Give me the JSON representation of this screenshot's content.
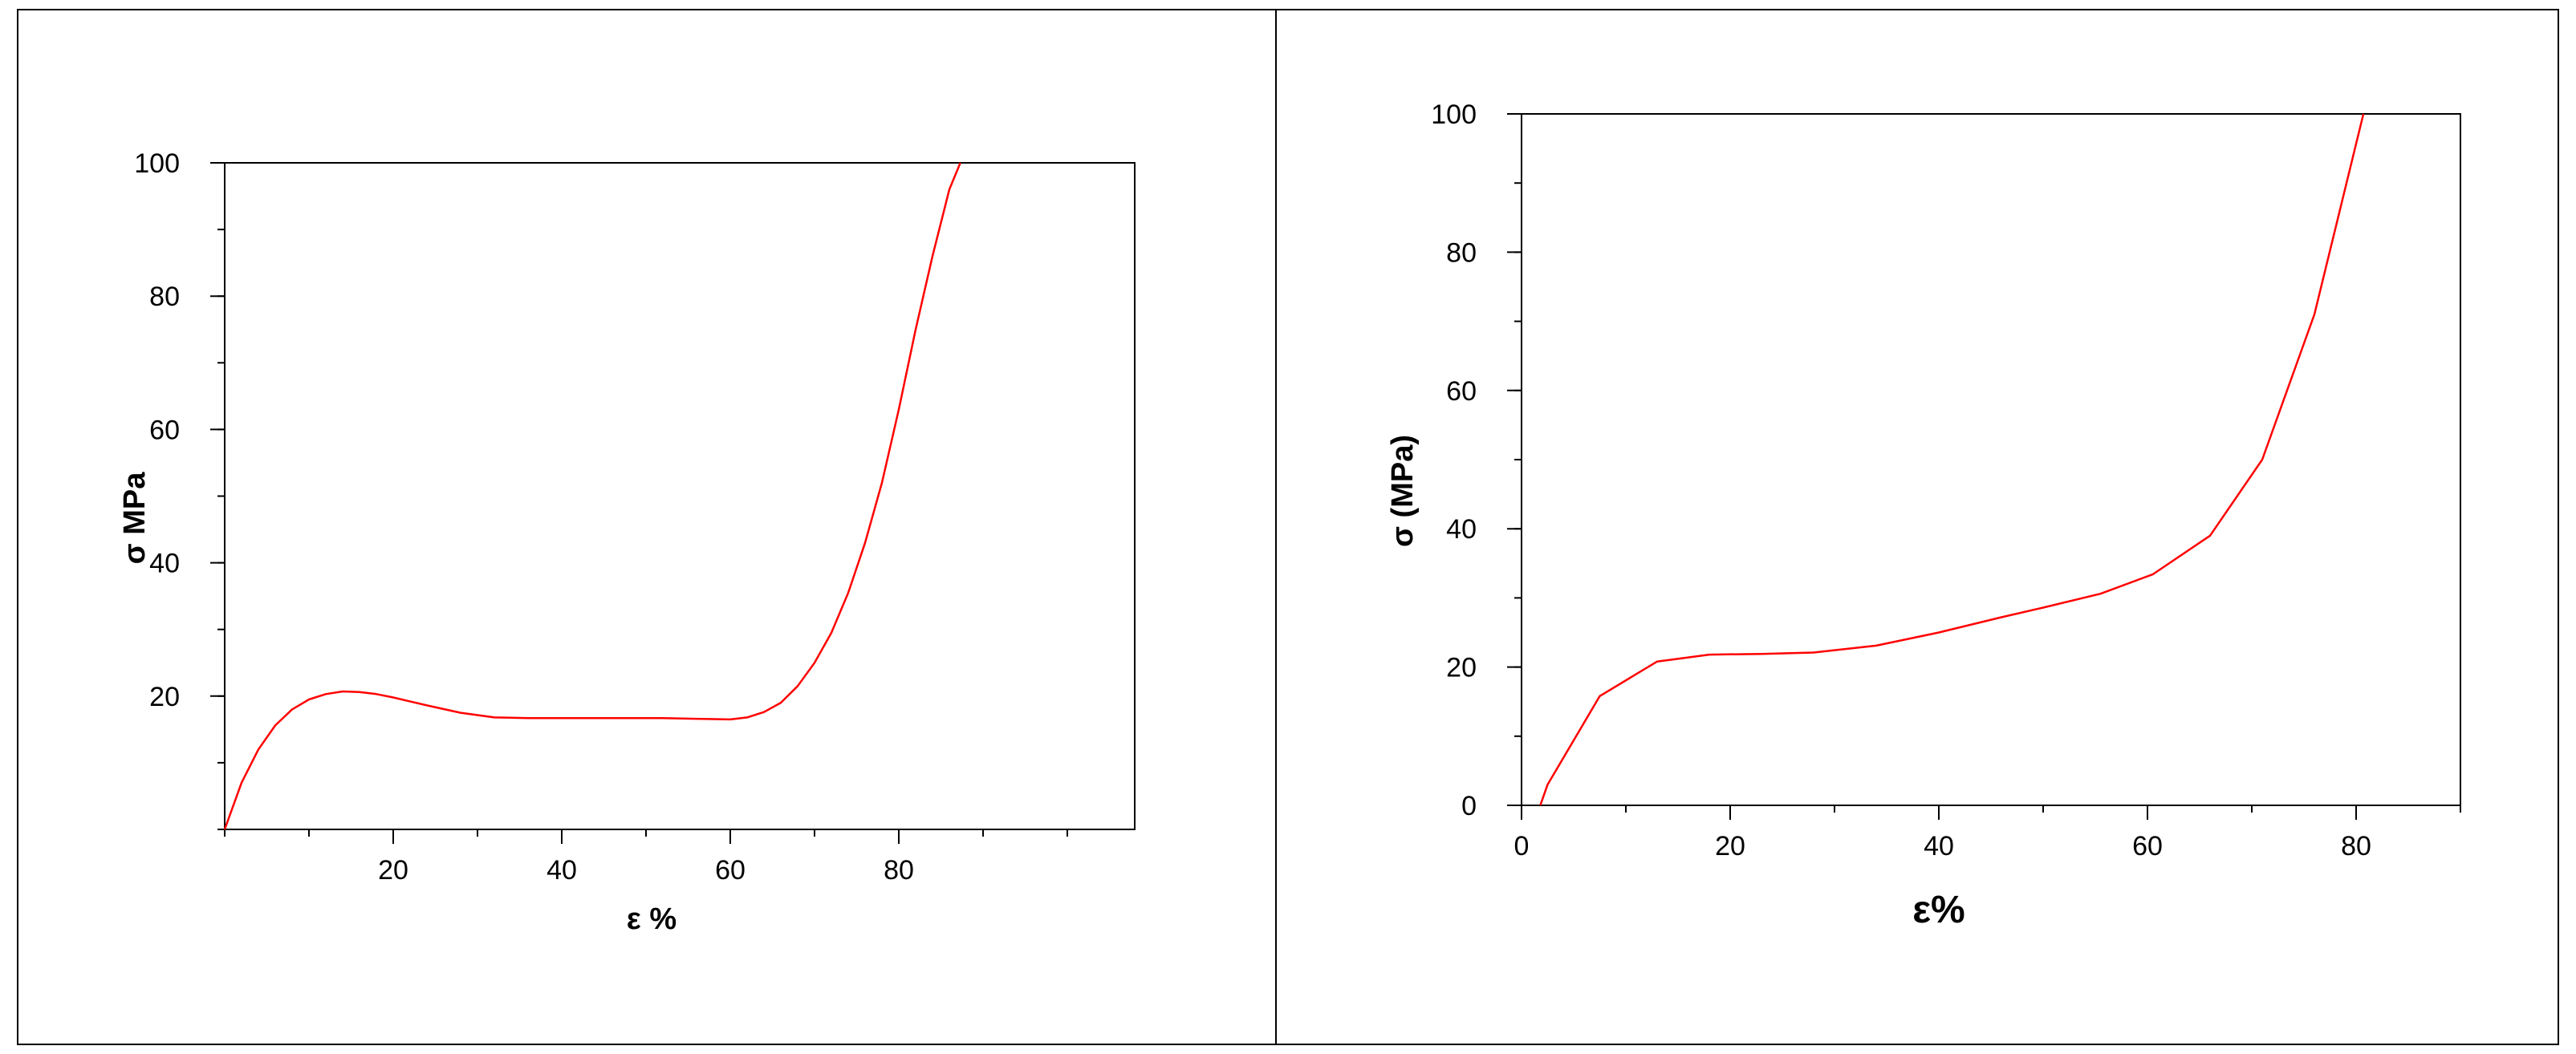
{
  "chart_data": [
    {
      "type": "line",
      "title": "",
      "xlabel": "ε %",
      "ylabel": "σ MPa",
      "xlim": [
        0,
        108
      ],
      "ylim": [
        0,
        100
      ],
      "x_ticks": [
        20,
        40,
        60,
        80
      ],
      "y_ticks": [
        20,
        40,
        60,
        80,
        100
      ],
      "grid": false,
      "series": [
        {
          "color": "#ff0000",
          "x": [
            0,
            2,
            4,
            6,
            8,
            10,
            12,
            14,
            16,
            18,
            20,
            24,
            28,
            32,
            36,
            40,
            44,
            48,
            52,
            56,
            60,
            62,
            64,
            66,
            68,
            70,
            72,
            74,
            76,
            78,
            80,
            82,
            84,
            86,
            87.3
          ],
          "y": [
            0,
            7,
            12,
            15.6,
            18,
            19.5,
            20.3,
            20.7,
            20.6,
            20.3,
            19.8,
            18.6,
            17.5,
            16.8,
            16.7,
            16.7,
            16.7,
            16.7,
            16.7,
            16.6,
            16.5,
            16.8,
            17.6,
            19,
            21.5,
            25,
            29.5,
            35.5,
            43,
            52,
            63,
            75,
            86,
            96,
            100
          ]
        }
      ]
    },
    {
      "type": "line",
      "title": "",
      "xlabel": "ε%",
      "ylabel": "σ (MPa)",
      "xlim": [
        0,
        90
      ],
      "ylim": [
        0,
        100
      ],
      "x_ticks": [
        0,
        20,
        40,
        60,
        80
      ],
      "y_ticks": [
        0,
        20,
        40,
        60,
        80,
        100
      ],
      "grid": false,
      "series": [
        {
          "color": "#ff0000",
          "x": [
            1.8,
            2.5,
            7.5,
            13,
            18,
            23,
            28,
            34,
            40,
            46,
            50,
            55.5,
            60.5,
            66,
            71,
            76,
            80.7
          ],
          "y": [
            0,
            3,
            15.8,
            20.8,
            21.8,
            21.9,
            22.1,
            23.1,
            25,
            27.2,
            28.6,
            30.6,
            33.4,
            39,
            50,
            71,
            100
          ]
        }
      ]
    }
  ]
}
